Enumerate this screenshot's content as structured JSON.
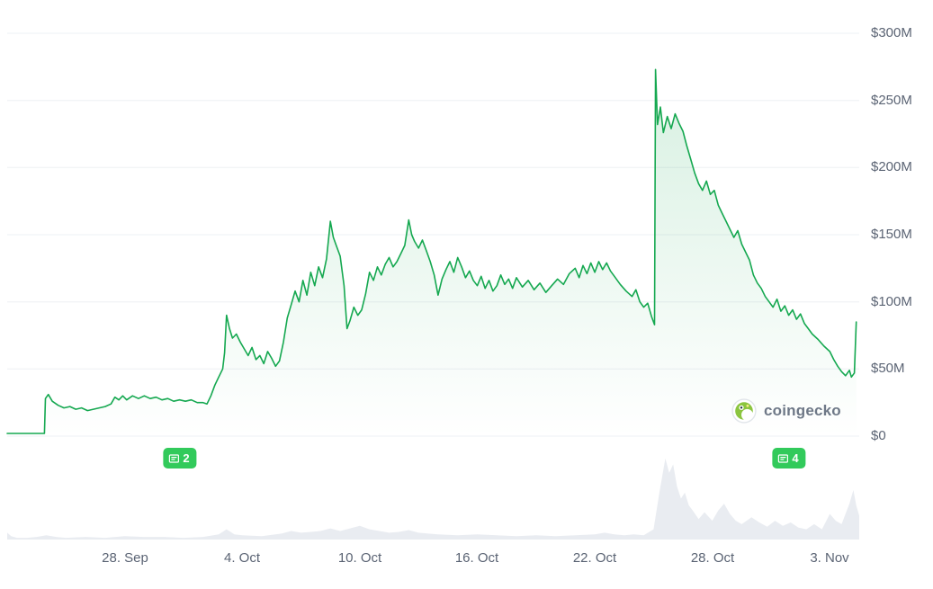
{
  "watermark": {
    "text": "coingecko"
  },
  "chart_data": {
    "type": "area",
    "title": "",
    "xlabel": "",
    "ylabel": "",
    "ylim": [
      0,
      300
    ],
    "x_domain_days": [
      0,
      43.5
    ],
    "grid": true,
    "legend": "none",
    "colors": {
      "line": "#15a850",
      "fill": "#15a850",
      "volume": "#e9ecf1",
      "badge": "#32ca5b",
      "grid": "#eef0f4",
      "axis_text": "#5b6474"
    },
    "y_ticks": [
      {
        "label": "$300M",
        "value": 300
      },
      {
        "label": "$250M",
        "value": 250
      },
      {
        "label": "$200M",
        "value": 200
      },
      {
        "label": "$150M",
        "value": 150
      },
      {
        "label": "$100M",
        "value": 100
      },
      {
        "label": "$50M",
        "value": 50
      },
      {
        "label": "$0",
        "value": 0
      }
    ],
    "x_ticks": [
      {
        "label": "28. Sep",
        "day": 6
      },
      {
        "label": "4. Oct",
        "day": 12
      },
      {
        "label": "10. Oct",
        "day": 18
      },
      {
        "label": "16. Oct",
        "day": 24
      },
      {
        "label": "22. Oct",
        "day": 30
      },
      {
        "label": "28. Oct",
        "day": 36
      },
      {
        "label": "3. Nov",
        "day": 42
      }
    ],
    "annotations": [
      {
        "label": "2",
        "day": 8.8
      },
      {
        "label": "4",
        "day": 39.9
      }
    ],
    "series": [
      {
        "name": "market-cap-usd-millions",
        "points": [
          [
            0,
            2
          ],
          [
            1.9,
            2
          ],
          [
            1.95,
            28
          ],
          [
            2.1,
            31
          ],
          [
            2.3,
            26
          ],
          [
            2.6,
            23
          ],
          [
            2.9,
            21
          ],
          [
            3.2,
            22
          ],
          [
            3.5,
            20
          ],
          [
            3.8,
            21
          ],
          [
            4.1,
            19
          ],
          [
            4.4,
            20
          ],
          [
            4.7,
            21
          ],
          [
            5.0,
            22
          ],
          [
            5.3,
            24
          ],
          [
            5.5,
            29
          ],
          [
            5.7,
            27
          ],
          [
            5.9,
            30
          ],
          [
            6.1,
            27
          ],
          [
            6.4,
            30
          ],
          [
            6.7,
            28
          ],
          [
            7.0,
            30
          ],
          [
            7.3,
            28
          ],
          [
            7.6,
            29
          ],
          [
            7.9,
            27
          ],
          [
            8.2,
            28
          ],
          [
            8.5,
            26
          ],
          [
            8.8,
            27
          ],
          [
            9.1,
            26
          ],
          [
            9.4,
            27
          ],
          [
            9.7,
            25
          ],
          [
            10.0,
            25
          ],
          [
            10.2,
            24
          ],
          [
            10.4,
            30
          ],
          [
            10.6,
            38
          ],
          [
            10.8,
            44
          ],
          [
            11.0,
            50
          ],
          [
            11.1,
            62
          ],
          [
            11.2,
            90
          ],
          [
            11.35,
            80
          ],
          [
            11.5,
            73
          ],
          [
            11.7,
            76
          ],
          [
            11.9,
            70
          ],
          [
            12.1,
            65
          ],
          [
            12.3,
            60
          ],
          [
            12.5,
            66
          ],
          [
            12.7,
            57
          ],
          [
            12.9,
            60
          ],
          [
            13.1,
            54
          ],
          [
            13.3,
            63
          ],
          [
            13.5,
            58
          ],
          [
            13.7,
            52
          ],
          [
            13.9,
            56
          ],
          [
            14.1,
            70
          ],
          [
            14.3,
            88
          ],
          [
            14.5,
            98
          ],
          [
            14.7,
            108
          ],
          [
            14.9,
            100
          ],
          [
            15.1,
            116
          ],
          [
            15.3,
            105
          ],
          [
            15.5,
            122
          ],
          [
            15.7,
            112
          ],
          [
            15.9,
            126
          ],
          [
            16.1,
            118
          ],
          [
            16.3,
            132
          ],
          [
            16.5,
            160
          ],
          [
            16.65,
            148
          ],
          [
            16.8,
            142
          ],
          [
            17.0,
            134
          ],
          [
            17.2,
            112
          ],
          [
            17.35,
            80
          ],
          [
            17.5,
            86
          ],
          [
            17.7,
            96
          ],
          [
            17.9,
            90
          ],
          [
            18.1,
            94
          ],
          [
            18.3,
            106
          ],
          [
            18.5,
            122
          ],
          [
            18.7,
            116
          ],
          [
            18.9,
            126
          ],
          [
            19.1,
            120
          ],
          [
            19.3,
            128
          ],
          [
            19.5,
            133
          ],
          [
            19.7,
            126
          ],
          [
            19.9,
            130
          ],
          [
            20.1,
            136
          ],
          [
            20.3,
            142
          ],
          [
            20.5,
            161
          ],
          [
            20.65,
            150
          ],
          [
            20.8,
            145
          ],
          [
            21.0,
            140
          ],
          [
            21.2,
            146
          ],
          [
            21.4,
            138
          ],
          [
            21.6,
            130
          ],
          [
            21.8,
            120
          ],
          [
            22.0,
            105
          ],
          [
            22.2,
            117
          ],
          [
            22.4,
            124
          ],
          [
            22.6,
            130
          ],
          [
            22.8,
            122
          ],
          [
            23.0,
            133
          ],
          [
            23.2,
            126
          ],
          [
            23.4,
            118
          ],
          [
            23.6,
            123
          ],
          [
            23.8,
            116
          ],
          [
            24.0,
            112
          ],
          [
            24.2,
            119
          ],
          [
            24.4,
            110
          ],
          [
            24.6,
            116
          ],
          [
            24.8,
            108
          ],
          [
            25.0,
            112
          ],
          [
            25.2,
            120
          ],
          [
            25.4,
            113
          ],
          [
            25.6,
            117
          ],
          [
            25.8,
            110
          ],
          [
            26.0,
            118
          ],
          [
            26.3,
            111
          ],
          [
            26.6,
            116
          ],
          [
            26.9,
            109
          ],
          [
            27.2,
            114
          ],
          [
            27.5,
            107
          ],
          [
            27.8,
            112
          ],
          [
            28.1,
            117
          ],
          [
            28.4,
            113
          ],
          [
            28.7,
            121
          ],
          [
            29.0,
            125
          ],
          [
            29.2,
            118
          ],
          [
            29.4,
            127
          ],
          [
            29.6,
            121
          ],
          [
            29.8,
            129
          ],
          [
            30.0,
            122
          ],
          [
            30.2,
            130
          ],
          [
            30.4,
            124
          ],
          [
            30.6,
            129
          ],
          [
            30.8,
            123
          ],
          [
            31.0,
            119
          ],
          [
            31.3,
            113
          ],
          [
            31.6,
            108
          ],
          [
            31.9,
            104
          ],
          [
            32.1,
            109
          ],
          [
            32.3,
            100
          ],
          [
            32.5,
            96
          ],
          [
            32.7,
            99
          ],
          [
            32.9,
            89
          ],
          [
            33.05,
            83
          ],
          [
            33.1,
            273
          ],
          [
            33.2,
            232
          ],
          [
            33.35,
            245
          ],
          [
            33.5,
            226
          ],
          [
            33.7,
            238
          ],
          [
            33.9,
            229
          ],
          [
            34.1,
            240
          ],
          [
            34.3,
            233
          ],
          [
            34.5,
            227
          ],
          [
            34.7,
            216
          ],
          [
            34.9,
            206
          ],
          [
            35.1,
            196
          ],
          [
            35.3,
            188
          ],
          [
            35.5,
            183
          ],
          [
            35.7,
            190
          ],
          [
            35.9,
            180
          ],
          [
            36.1,
            183
          ],
          [
            36.3,
            172
          ],
          [
            36.5,
            166
          ],
          [
            36.7,
            160
          ],
          [
            36.9,
            154
          ],
          [
            37.1,
            148
          ],
          [
            37.3,
            153
          ],
          [
            37.5,
            143
          ],
          [
            37.7,
            137
          ],
          [
            37.9,
            131
          ],
          [
            38.1,
            120
          ],
          [
            38.3,
            114
          ],
          [
            38.5,
            110
          ],
          [
            38.7,
            104
          ],
          [
            38.9,
            100
          ],
          [
            39.1,
            96
          ],
          [
            39.3,
            102
          ],
          [
            39.5,
            93
          ],
          [
            39.7,
            97
          ],
          [
            39.9,
            90
          ],
          [
            40.1,
            94
          ],
          [
            40.3,
            87
          ],
          [
            40.5,
            91
          ],
          [
            40.7,
            84
          ],
          [
            40.9,
            80
          ],
          [
            41.1,
            76
          ],
          [
            41.4,
            72
          ],
          [
            41.7,
            67
          ],
          [
            42.0,
            63
          ],
          [
            42.2,
            57
          ],
          [
            42.4,
            52
          ],
          [
            42.6,
            48
          ],
          [
            42.8,
            45
          ],
          [
            43.0,
            49
          ],
          [
            43.1,
            44
          ],
          [
            43.25,
            47
          ],
          [
            43.35,
            85
          ]
        ]
      }
    ],
    "volume_relative": {
      "name": "volume",
      "scale": "0-100 relative height",
      "points": [
        [
          0,
          8
        ],
        [
          0.2,
          4
        ],
        [
          0.5,
          2
        ],
        [
          1,
          2
        ],
        [
          1.5,
          3
        ],
        [
          2,
          5
        ],
        [
          2.5,
          3
        ],
        [
          3,
          2
        ],
        [
          4,
          3
        ],
        [
          5,
          2
        ],
        [
          6,
          4
        ],
        [
          7,
          3
        ],
        [
          8,
          3
        ],
        [
          9,
          2
        ],
        [
          10,
          3
        ],
        [
          10.8,
          6
        ],
        [
          11.2,
          12
        ],
        [
          11.6,
          6
        ],
        [
          12,
          5
        ],
        [
          13,
          4
        ],
        [
          14,
          7
        ],
        [
          14.5,
          10
        ],
        [
          15,
          8
        ],
        [
          15.5,
          9
        ],
        [
          16,
          10
        ],
        [
          16.5,
          13
        ],
        [
          17,
          10
        ],
        [
          17.5,
          13
        ],
        [
          18,
          16
        ],
        [
          18.5,
          12
        ],
        [
          19,
          10
        ],
        [
          19.5,
          8
        ],
        [
          20,
          9
        ],
        [
          20.5,
          11
        ],
        [
          21,
          8
        ],
        [
          21.5,
          7
        ],
        [
          22,
          6
        ],
        [
          23,
          5
        ],
        [
          24,
          6
        ],
        [
          25,
          5
        ],
        [
          26,
          4
        ],
        [
          27,
          5
        ],
        [
          28,
          4
        ],
        [
          29,
          5
        ],
        [
          30,
          6
        ],
        [
          30.5,
          8
        ],
        [
          31,
          6
        ],
        [
          31.5,
          5
        ],
        [
          32,
          6
        ],
        [
          32.5,
          5
        ],
        [
          33,
          12
        ],
        [
          33.3,
          55
        ],
        [
          33.6,
          95
        ],
        [
          33.8,
          78
        ],
        [
          34,
          88
        ],
        [
          34.2,
          62
        ],
        [
          34.4,
          48
        ],
        [
          34.6,
          55
        ],
        [
          34.8,
          40
        ],
        [
          35,
          34
        ],
        [
          35.3,
          24
        ],
        [
          35.6,
          32
        ],
        [
          36,
          22
        ],
        [
          36.3,
          34
        ],
        [
          36.6,
          42
        ],
        [
          36.9,
          30
        ],
        [
          37.2,
          22
        ],
        [
          37.5,
          18
        ],
        [
          38,
          26
        ],
        [
          38.4,
          20
        ],
        [
          38.8,
          15
        ],
        [
          39.2,
          22
        ],
        [
          39.6,
          16
        ],
        [
          40,
          20
        ],
        [
          40.4,
          14
        ],
        [
          40.8,
          12
        ],
        [
          41.2,
          18
        ],
        [
          41.6,
          12
        ],
        [
          42,
          30
        ],
        [
          42.3,
          22
        ],
        [
          42.6,
          18
        ],
        [
          43,
          42
        ],
        [
          43.2,
          58
        ],
        [
          43.35,
          40
        ],
        [
          43.5,
          28
        ]
      ]
    }
  }
}
